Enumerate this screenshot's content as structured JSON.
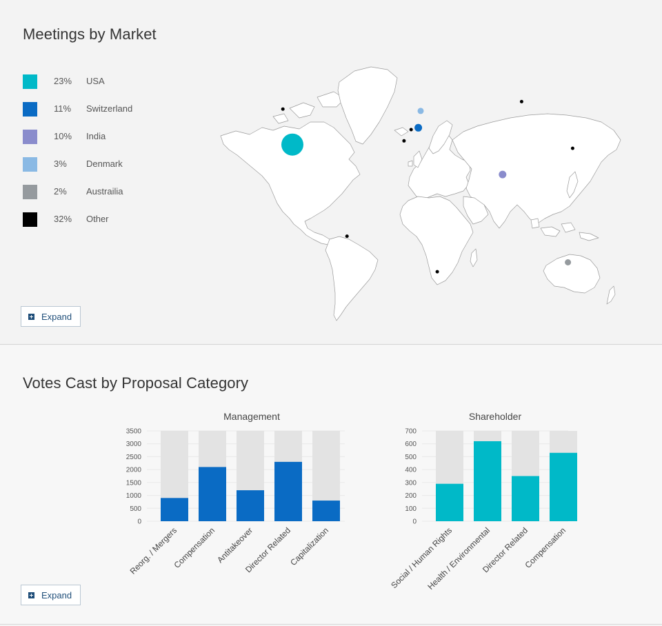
{
  "map_section": {
    "title": "Meetings by Market",
    "expand_label": "Expand"
  },
  "votes_section": {
    "title": "Votes Cast by Proposal Category",
    "expand_label": "Expand"
  },
  "chart_data": [
    {
      "type": "map",
      "title": "Meetings by Market",
      "legend": [
        {
          "pct": "23%",
          "name": "USA",
          "color": "#00b9c8"
        },
        {
          "pct": "11%",
          "name": "Switzerland",
          "color": "#0a6bc4"
        },
        {
          "pct": "10%",
          "name": "India",
          "color": "#8a8ccc"
        },
        {
          "pct": "3%",
          "name": "Denmark",
          "color": "#8ab9e4"
        },
        {
          "pct": "2%",
          "name": "Austrailia",
          "color": "#959a9e"
        },
        {
          "pct": "32%",
          "name": "Other",
          "color": "#000000"
        }
      ],
      "markers": [
        {
          "name": "USA",
          "lon": -98,
          "lat": 38,
          "value": 23,
          "color": "#00b9c8"
        },
        {
          "name": "Switzerland",
          "lon": 8,
          "lat": 47,
          "value": 11,
          "color": "#0a6bc4"
        },
        {
          "name": "India",
          "lon": 79,
          "lat": 22,
          "value": 10,
          "color": "#8a8ccc"
        },
        {
          "name": "Denmark",
          "lon": 10,
          "lat": 56,
          "value": 3,
          "color": "#8ab9e4"
        },
        {
          "name": "Austrailia",
          "lon": 134,
          "lat": -25,
          "value": 2,
          "color": "#959a9e"
        },
        {
          "name": "Canada",
          "lon": -106,
          "lat": 57,
          "value": 1,
          "color": "#000000"
        },
        {
          "name": "Brazil",
          "lon": -52,
          "lat": -11,
          "value": 1,
          "color": "#000000"
        },
        {
          "name": "Russia",
          "lon": 95,
          "lat": 61,
          "value": 1,
          "color": "#000000"
        },
        {
          "name": "Japan",
          "lon": 138,
          "lat": 36,
          "value": 1,
          "color": "#000000"
        },
        {
          "name": "South Africa",
          "lon": 24,
          "lat": -30,
          "value": 1,
          "color": "#000000"
        },
        {
          "name": "France",
          "lon": 2,
          "lat": 46,
          "value": 1,
          "color": "#000000"
        },
        {
          "name": "Spain",
          "lon": -4,
          "lat": 40,
          "value": 1,
          "color": "#000000"
        }
      ]
    },
    {
      "type": "bar",
      "stacked": true,
      "title": "Management",
      "categories": [
        "Reorg. / Mergers",
        "Compensation",
        "Antitakeover",
        "Director Related",
        "Capitalization"
      ],
      "values": [
        900,
        2100,
        1200,
        2300,
        800
      ],
      "ylim": [
        0,
        3500
      ],
      "yticks": [
        0,
        500,
        1000,
        1500,
        2000,
        2500,
        3000,
        3500
      ],
      "bar_color": "#0a6bc4",
      "background_color": "#e3e3e3"
    },
    {
      "type": "bar",
      "stacked": true,
      "title": "Shareholder",
      "categories": [
        "Social / Human Rights",
        "Health / Environmental",
        "Director Related",
        "Compensation"
      ],
      "values": [
        290,
        620,
        350,
        530
      ],
      "ylim": [
        0,
        700
      ],
      "yticks": [
        0,
        100,
        200,
        300,
        400,
        500,
        600,
        700
      ],
      "bar_color": "#00b9c8",
      "background_color": "#e3e3e3"
    }
  ]
}
